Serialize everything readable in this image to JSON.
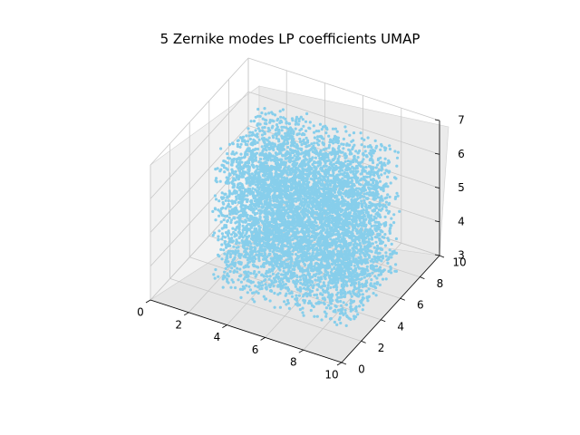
{
  "chart_data": {
    "type": "scatter",
    "projection": "3d",
    "title": "5 Zernike modes LP coefficients UMAP",
    "xlabel": "",
    "ylabel": "",
    "zlabel": "",
    "x_ticks": [
      "0",
      "2",
      "4",
      "6",
      "8",
      "10"
    ],
    "y_ticks": [
      "0",
      "2",
      "4",
      "6",
      "8",
      "10"
    ],
    "z_ticks": [
      "3",
      "4",
      "5",
      "6",
      "7"
    ],
    "xlim": [
      0,
      10
    ],
    "ylim": [
      0,
      10
    ],
    "zlim": [
      3,
      7
    ],
    "grid": true,
    "series": [
      {
        "color": "#87ceeb",
        "x_range": [
          2.2,
          9.2
        ],
        "y_range": [
          2.0,
          7.5
        ],
        "z_range": [
          3.1,
          7.0
        ],
        "distribution": "dense uniform block"
      }
    ]
  }
}
